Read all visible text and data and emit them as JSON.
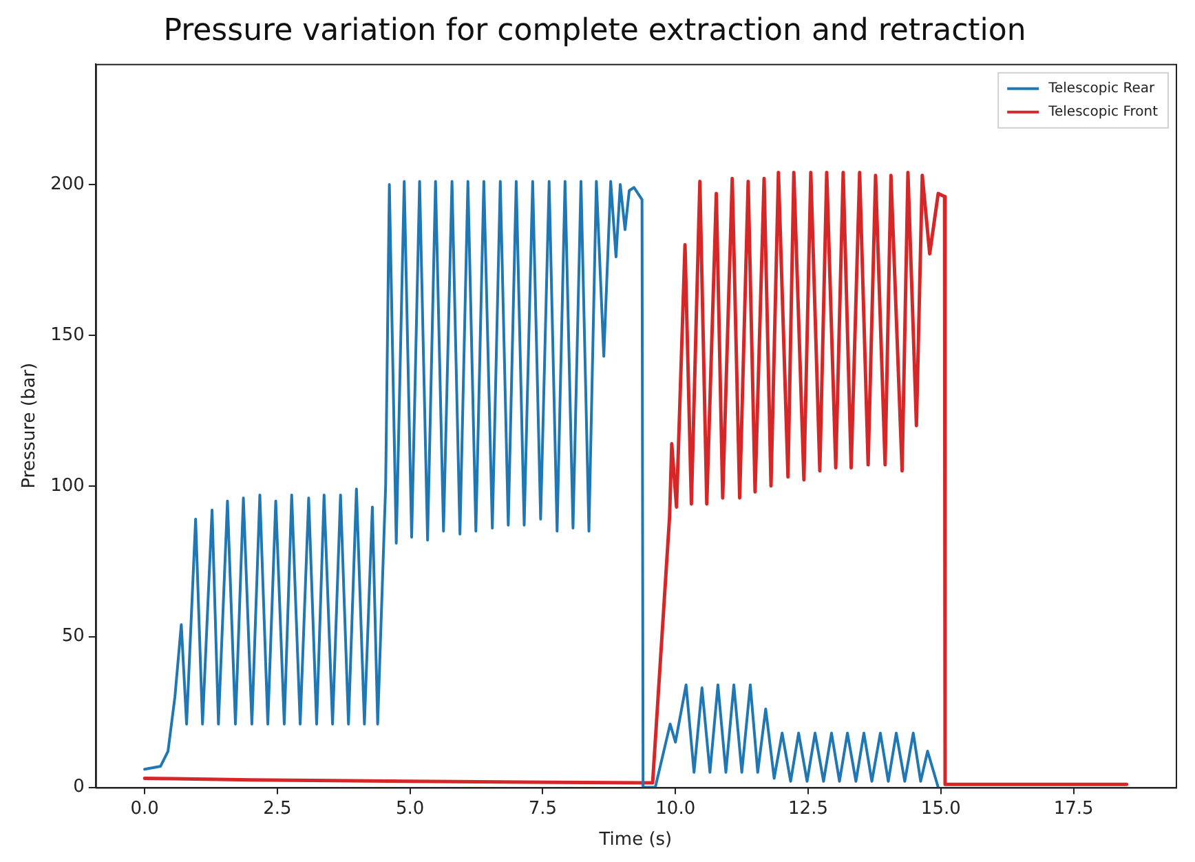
{
  "chart_data": {
    "type": "line",
    "title": "Pressure variation for complete extraction and retraction",
    "xlabel": "Time (s)",
    "ylabel": "Pressure (bar)",
    "xlim": [
      -0.925,
      19.425
    ],
    "ylim": [
      0,
      240
    ],
    "xticks": [
      {
        "value": 0,
        "label": "0.0"
      },
      {
        "value": 2.5,
        "label": "2.5"
      },
      {
        "value": 5,
        "label": "5.0"
      },
      {
        "value": 7.5,
        "label": "7.5"
      },
      {
        "value": 10,
        "label": "10.0"
      },
      {
        "value": 12.5,
        "label": "12.5"
      },
      {
        "value": 15,
        "label": "15.0"
      },
      {
        "value": 17.5,
        "label": "17.5"
      }
    ],
    "yticks": [
      0,
      50,
      100,
      150,
      200
    ],
    "legend": "top right",
    "grid": false,
    "marker": "none",
    "line_style": "solid",
    "series": [
      {
        "name": "Telescopic Rear",
        "color": "#1f77b4",
        "x": [
          0,
          0.3,
          0.44,
          0.57,
          0.69,
          0.79,
          0.96,
          1.09,
          1.27,
          1.39,
          1.56,
          1.71,
          1.86,
          2.02,
          2.17,
          2.32,
          2.47,
          2.63,
          2.77,
          2.93,
          3.09,
          3.24,
          3.38,
          3.54,
          3.69,
          3.84,
          3.99,
          4.14,
          4.29,
          4.39,
          4.54,
          4.61,
          4.74,
          4.89,
          5.03,
          5.18,
          5.33,
          5.48,
          5.63,
          5.79,
          5.94,
          6.09,
          6.24,
          6.39,
          6.55,
          6.7,
          6.85,
          7.0,
          7.15,
          7.31,
          7.46,
          7.62,
          7.77,
          7.92,
          8.07,
          8.22,
          8.37,
          8.51,
          8.65,
          8.78,
          8.88,
          8.96,
          9.05,
          9.13,
          9.22,
          9.37,
          9.39,
          9.62,
          9.9,
          10.0,
          10.2,
          10.35,
          10.5,
          10.65,
          10.8,
          10.95,
          11.1,
          11.25,
          11.41,
          11.55,
          11.7,
          11.86,
          12.01,
          12.17,
          12.32,
          12.48,
          12.63,
          12.79,
          12.94,
          13.09,
          13.24,
          13.4,
          13.55,
          13.7,
          13.86,
          14.01,
          14.16,
          14.32,
          14.48,
          14.62,
          14.75,
          14.95
        ],
        "values": [
          6,
          7,
          12,
          30,
          54,
          21,
          89,
          21,
          92,
          21,
          95,
          21,
          96,
          21,
          97,
          21,
          95,
          21,
          97,
          21,
          96,
          21,
          97,
          21,
          97,
          21,
          99,
          21,
          93,
          21,
          100,
          200,
          81,
          201,
          83,
          201,
          82,
          201,
          85,
          201,
          84,
          201,
          85,
          201,
          86,
          201,
          87,
          201,
          87,
          201,
          89,
          201,
          85,
          201,
          86,
          201,
          85,
          201,
          143,
          201,
          176,
          200,
          185,
          198,
          199,
          195,
          0,
          0,
          21,
          15,
          34,
          5,
          33,
          5,
          34,
          5,
          34,
          5,
          34,
          5,
          26,
          3,
          18,
          2,
          18,
          2,
          18,
          2,
          18,
          2,
          18,
          2,
          18,
          2,
          18,
          2,
          18,
          2,
          18,
          2,
          12,
          0
        ]
      },
      {
        "name": "Telescopic Front",
        "color": "#d62728",
        "x": [
          0,
          2,
          5,
          9.4,
          9.57,
          9.89,
          9.93,
          10.02,
          10.18,
          10.3,
          10.46,
          10.59,
          10.77,
          10.89,
          11.07,
          11.21,
          11.37,
          11.5,
          11.67,
          11.8,
          11.94,
          12.12,
          12.23,
          12.42,
          12.55,
          12.72,
          12.85,
          13.02,
          13.16,
          13.31,
          13.47,
          13.63,
          13.77,
          13.95,
          14.06,
          14.27,
          14.38,
          14.54,
          14.65,
          14.79,
          14.95,
          15.07,
          15.08,
          18.5
        ],
        "values": [
          3,
          2.5,
          2,
          1.5,
          1.5,
          90,
          114,
          93,
          180,
          94,
          201,
          94,
          197,
          96,
          202,
          96,
          201,
          98,
          202,
          100,
          204,
          103,
          204,
          102,
          204,
          105,
          204,
          106,
          204,
          106,
          204,
          107,
          203,
          107,
          203,
          105,
          204,
          120,
          203,
          177,
          197,
          196,
          1,
          1
        ]
      }
    ]
  }
}
